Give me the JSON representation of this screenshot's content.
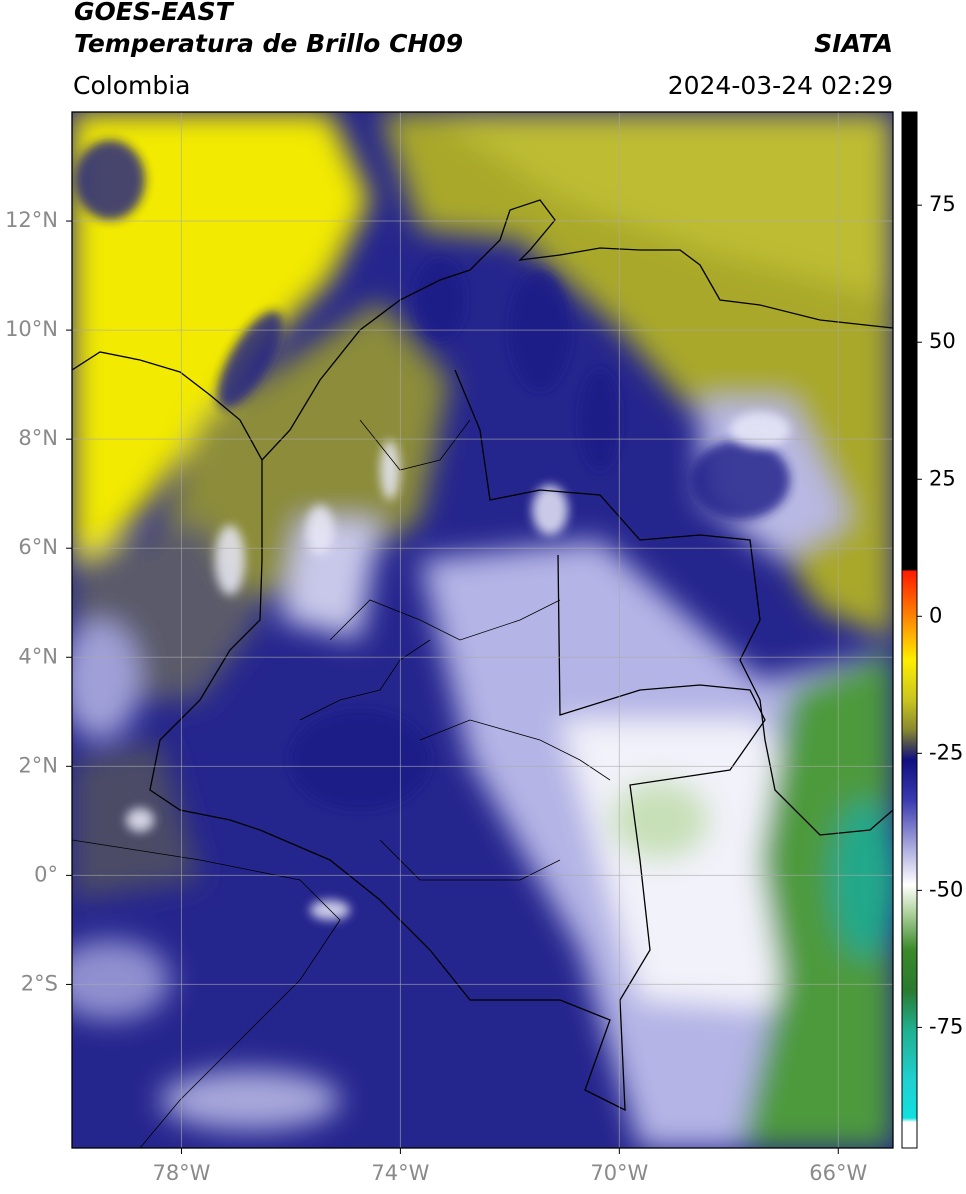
{
  "header": {
    "title": "GOES-EAST",
    "subtitle": "Temperatura de Brillo CH09",
    "source": "SIATA",
    "region": "Colombia",
    "timestamp": "2024-03-24 02:29"
  },
  "map": {
    "lonlim": [
      -80,
      -65
    ],
    "latlim": [
      -5,
      14
    ],
    "lonticks": [
      {
        "value": -78,
        "label": "78°W"
      },
      {
        "value": -74,
        "label": "74°W"
      },
      {
        "value": -70,
        "label": "70°W"
      },
      {
        "value": -66,
        "label": "66°W"
      }
    ],
    "latticks": [
      {
        "value": 12,
        "label": "12°N"
      },
      {
        "value": 10,
        "label": "10°N"
      },
      {
        "value": 8,
        "label": "8°N"
      },
      {
        "value": 6,
        "label": "6°N"
      },
      {
        "value": 4,
        "label": "4°N"
      },
      {
        "value": 2,
        "label": "2°N"
      },
      {
        "value": 0,
        "label": "0°"
      },
      {
        "value": -2,
        "label": "2°S"
      }
    ],
    "grid": true
  },
  "colorbar": {
    "lim": [
      -97,
      92
    ],
    "ticks": [
      75,
      50,
      25,
      0,
      -25,
      -50,
      -75
    ]
  }
}
